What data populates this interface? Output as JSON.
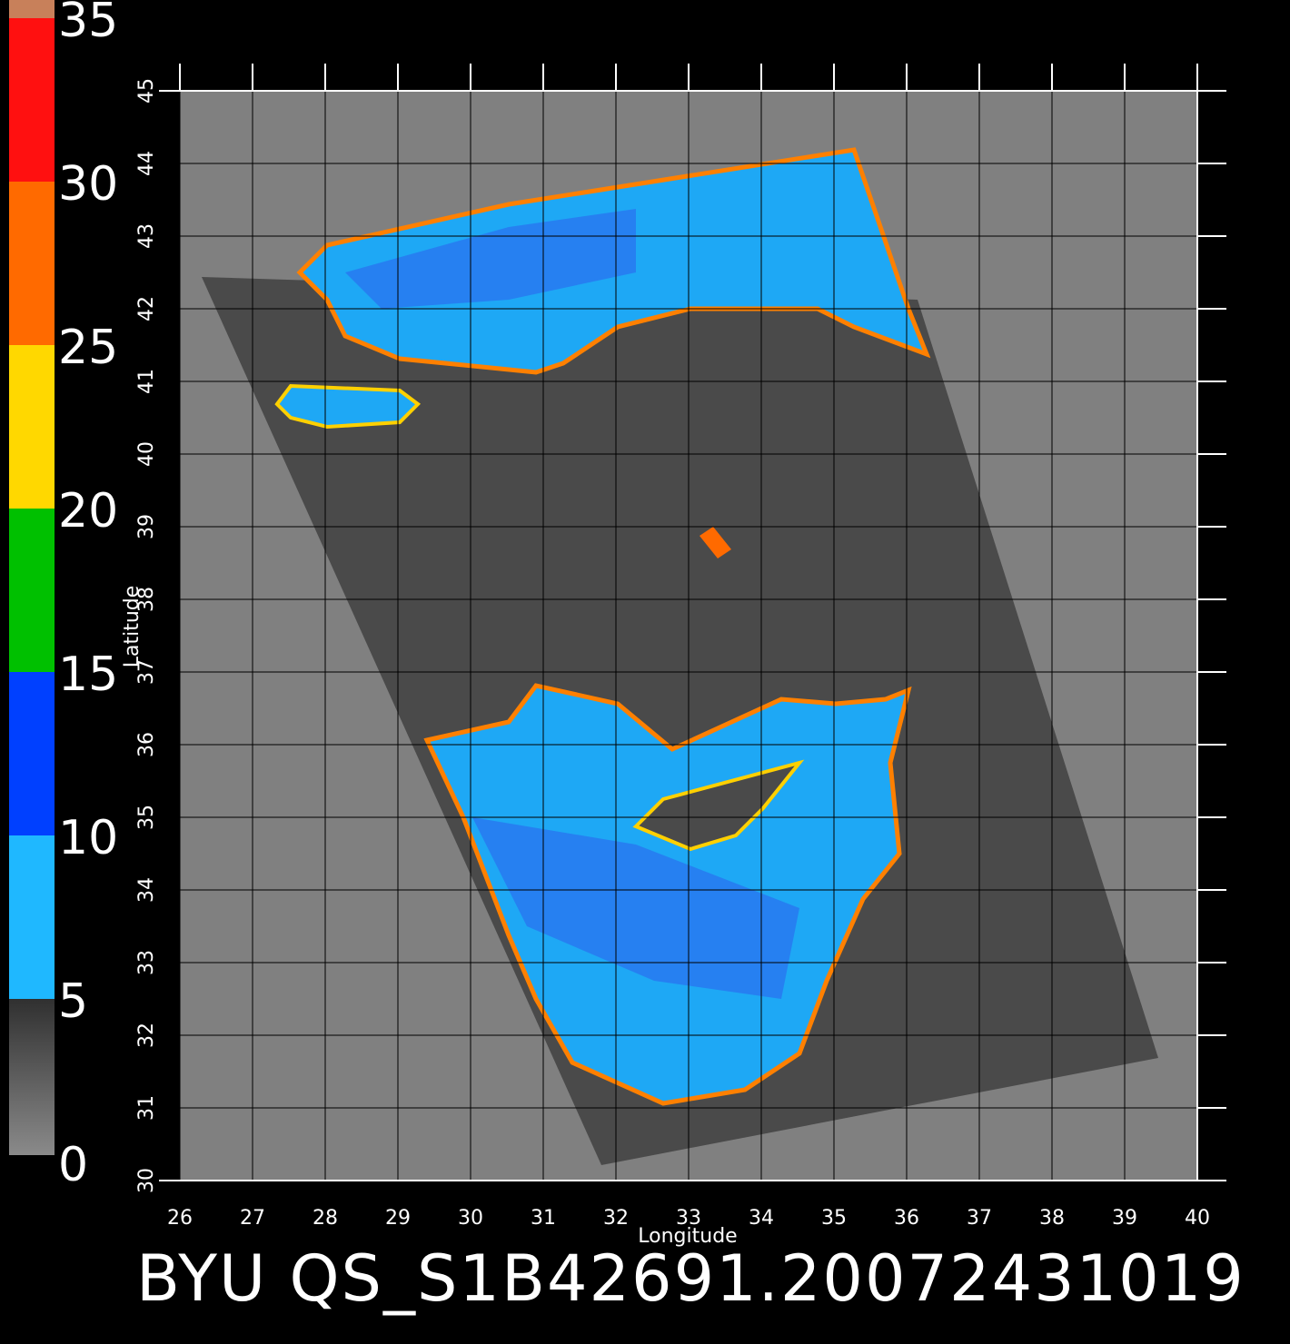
{
  "chart_data": {
    "type": "map",
    "title": "BYU QS_S1B42691.20072431019",
    "x_label": "Longitude",
    "y_label": "Latitude",
    "xlim": [
      26,
      40
    ],
    "ylim": [
      30,
      45
    ],
    "xticks": [
      26,
      27,
      28,
      29,
      30,
      31,
      32,
      33,
      34,
      35,
      36,
      37,
      38,
      39,
      40
    ],
    "yticks": [
      30,
      31,
      32,
      33,
      34,
      35,
      36,
      37,
      38,
      39,
      40,
      41,
      42,
      43,
      44,
      45
    ],
    "grid": true,
    "colorbar": {
      "range": [
        0,
        35
      ],
      "ticks": [
        0,
        5,
        10,
        15,
        20,
        25,
        30,
        35
      ],
      "colors": [
        "#7a7a7a",
        "#1fb8ff",
        "#0040ff",
        "#00c000",
        "#ffd800",
        "#ff6a00",
        "#ff1010",
        "#c8805a"
      ]
    }
  }
}
